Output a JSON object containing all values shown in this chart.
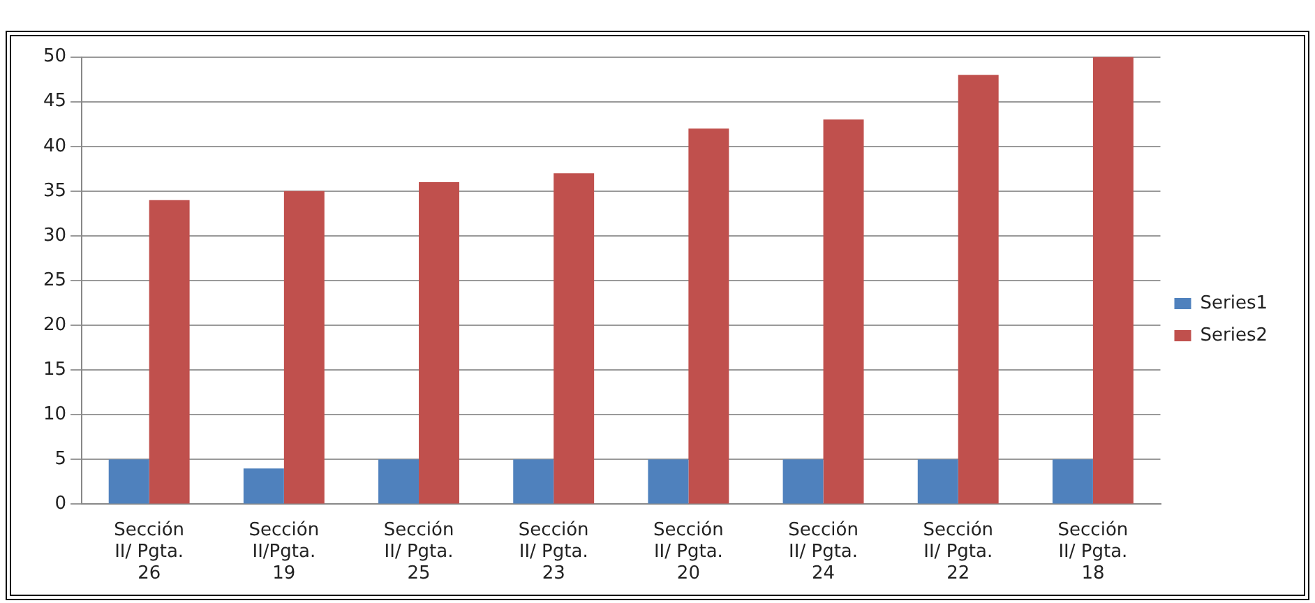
{
  "chart_data": {
    "type": "bar",
    "categories": [
      "Sección II/ Pgta. 26",
      "Sección II/Pgta. 19",
      "Sección II/ Pgta. 25",
      "Sección II/ Pgta. 23",
      "Sección II/ Pgta. 20",
      "Sección II/ Pgta. 24",
      "Sección II/ Pgta. 22",
      "Sección II/ Pgta. 18"
    ],
    "series": [
      {
        "name": "Series1",
        "color": "#4f81bd",
        "values": [
          5,
          4,
          5,
          5,
          5,
          5,
          5,
          5
        ]
      },
      {
        "name": "Series2",
        "color": "#c0504d",
        "values": [
          34,
          35,
          36,
          37,
          42,
          43,
          48,
          50
        ]
      }
    ],
    "ylim": [
      0,
      50
    ],
    "yticks": [
      0,
      5,
      10,
      15,
      20,
      25,
      30,
      35,
      40,
      45,
      50
    ],
    "grid": "y",
    "legend": "right"
  }
}
